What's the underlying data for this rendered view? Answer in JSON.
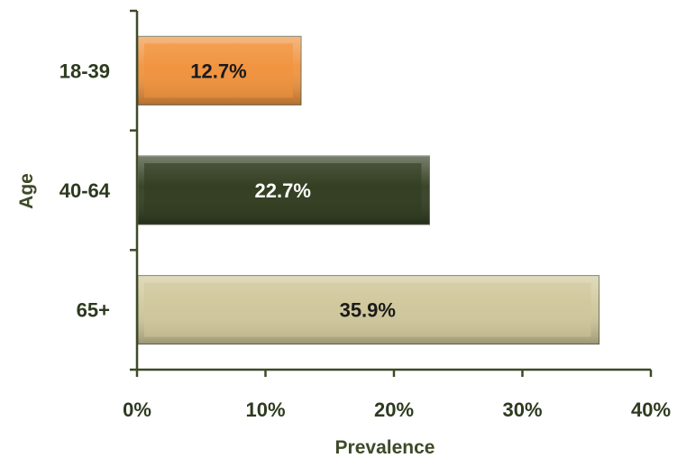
{
  "chart_data": {
    "type": "bar",
    "orientation": "horizontal",
    "categories": [
      "18-39",
      "40-64",
      "65+"
    ],
    "values": [
      12.7,
      22.7,
      35.9
    ],
    "data_labels": [
      "12.7%",
      "22.7%",
      "35.9%"
    ],
    "bar_colors": [
      "#f0923c",
      "#2f3b1e",
      "#cfc79a"
    ],
    "label_colors": [
      "#1a1a1a",
      "#ffffff",
      "#1a1a1a"
    ],
    "xlabel": "Prevalence",
    "ylabel": "Age",
    "xlim": [
      0,
      40
    ],
    "xticks": [
      0,
      10,
      20,
      30,
      40
    ],
    "xtick_labels": [
      "0%",
      "10%",
      "20%",
      "30%",
      "40%"
    ],
    "grid": false,
    "legend": "none"
  }
}
